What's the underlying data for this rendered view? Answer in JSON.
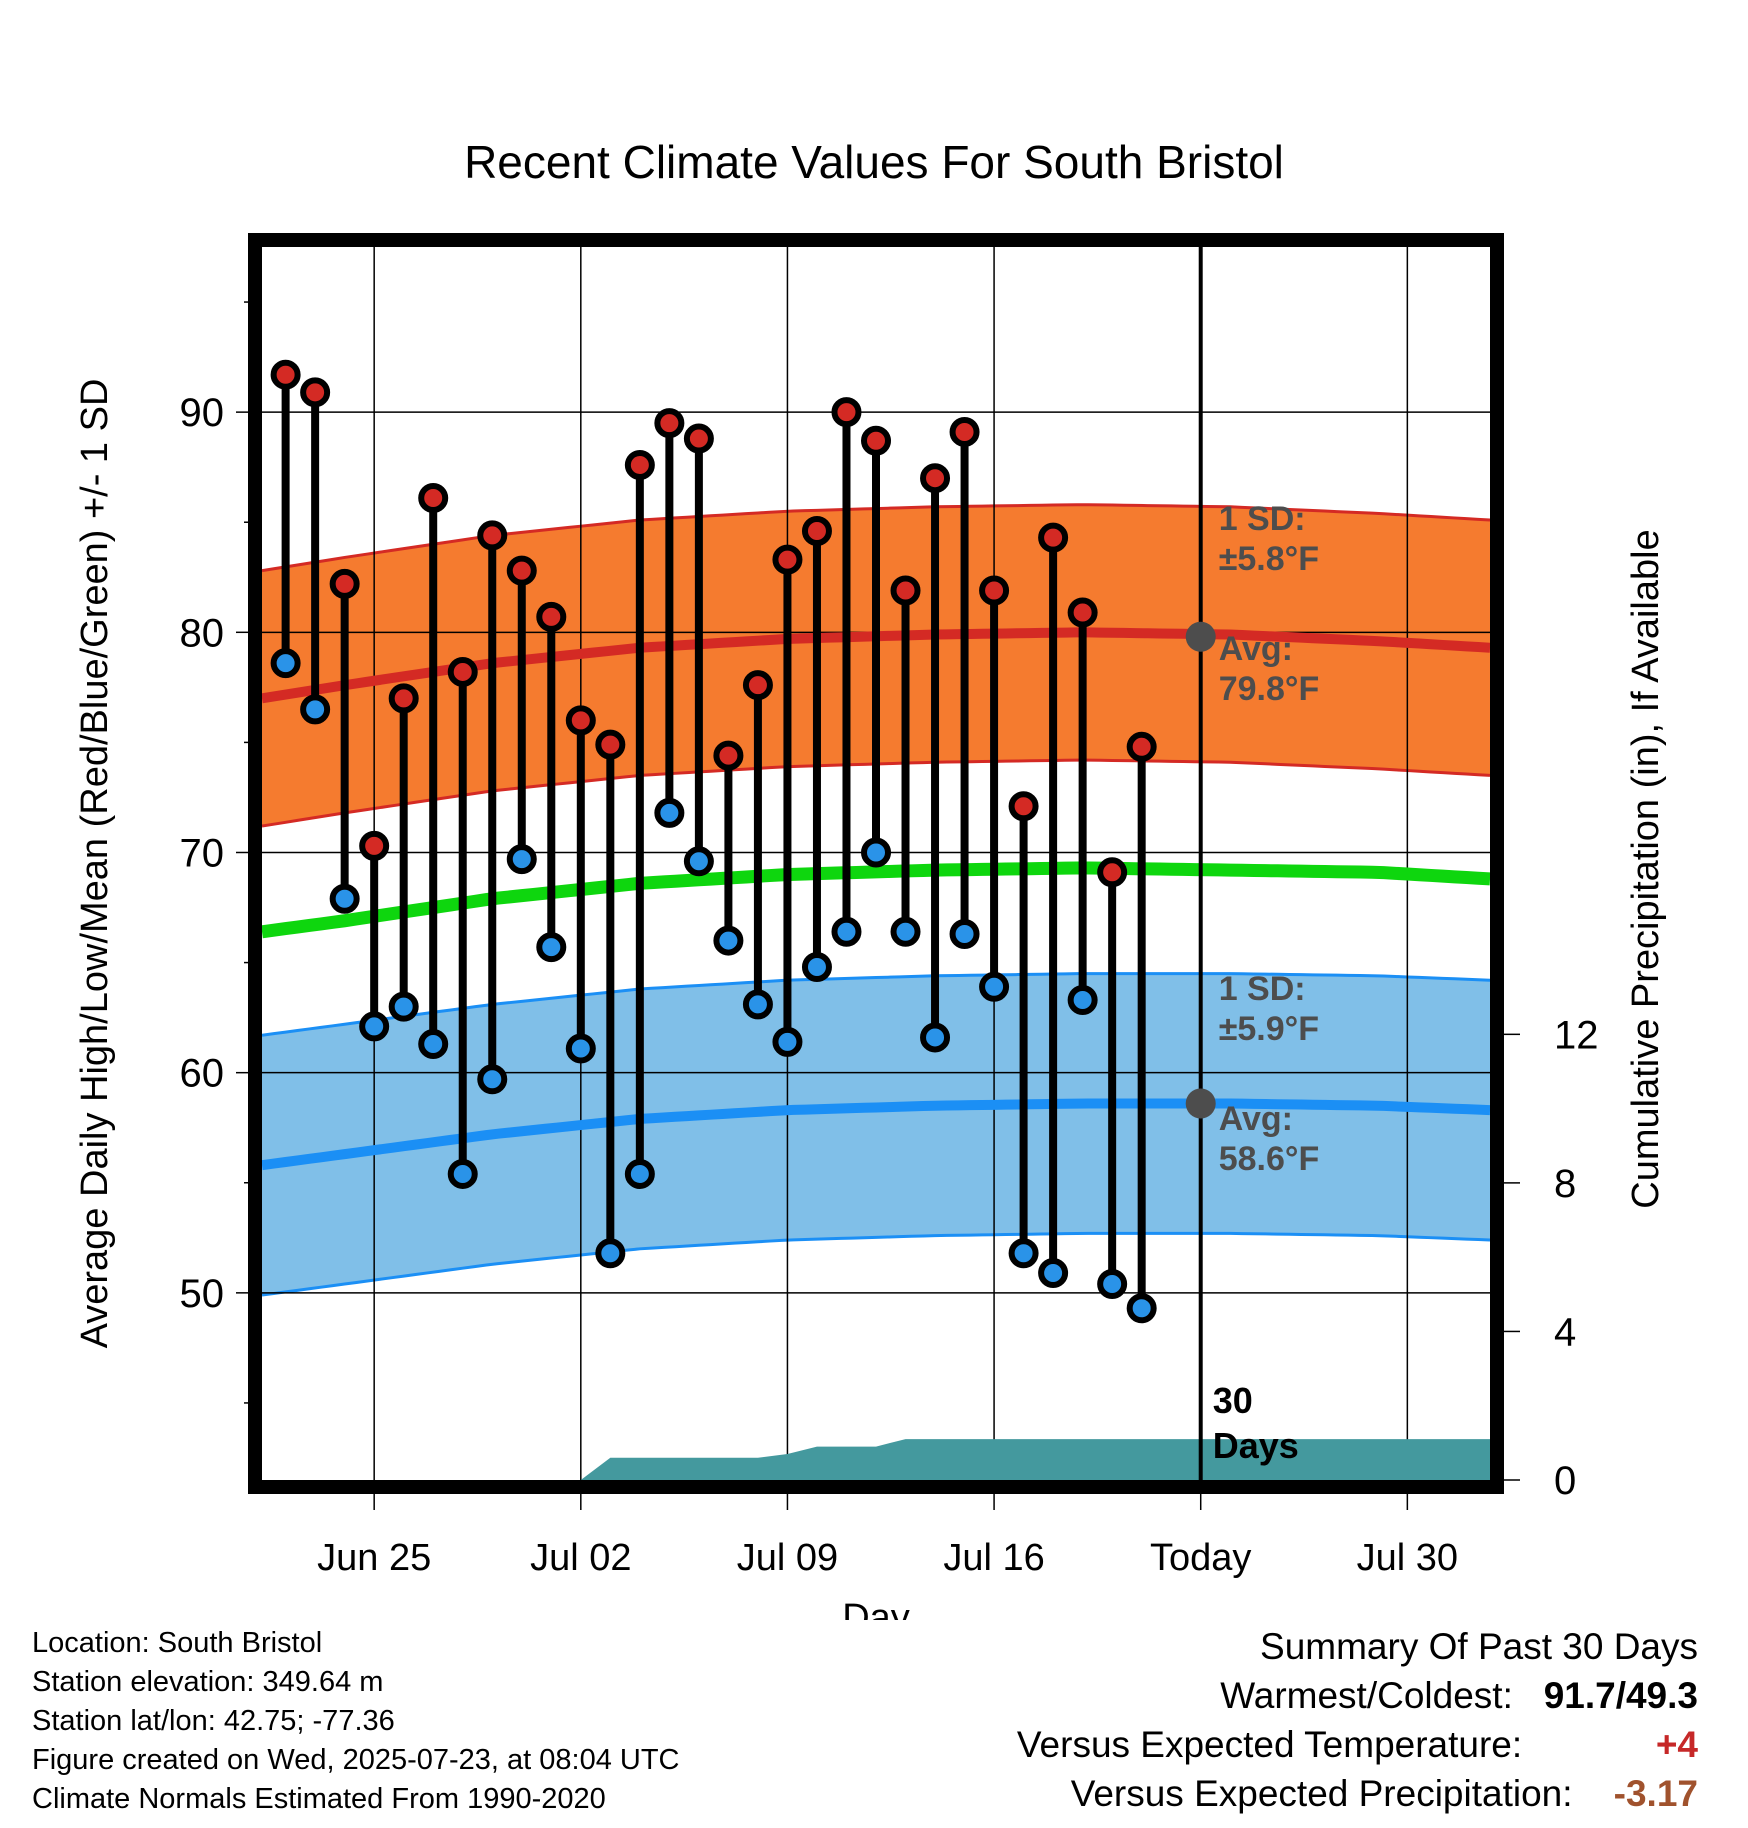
{
  "chart_data": {
    "type": "line",
    "title": "Recent Climate Values For South Bristol",
    "xlabel": "Day",
    "ylabel": "Average Daily High/Low/Mean (Red/Blue/Green) +/- 1 SD",
    "y2label": "Cumulative Precipitation (in), If Available",
    "ylim": [
      41.5,
      97.5
    ],
    "y2lim": [
      0,
      33.2
    ],
    "xlim": [
      -2.8,
      38.8
    ],
    "yticks": [
      50,
      60,
      70,
      80,
      90
    ],
    "y2ticks": [
      0,
      4,
      8,
      12
    ],
    "xticks": [
      {
        "day": 1,
        "label": "Jun 25"
      },
      {
        "day": 8,
        "label": "Jul 02"
      },
      {
        "day": 15,
        "label": "Jul 09"
      },
      {
        "day": 22,
        "label": "Jul 16"
      },
      {
        "day": 29,
        "label": "Today"
      },
      {
        "day": 36,
        "label": "Jul 30"
      }
    ],
    "today_day": 29,
    "today_label": "30\nDays",
    "observed": {
      "high": [
        91.7,
        90.9,
        82.2,
        70.3,
        77.0,
        86.1,
        78.2,
        84.4,
        82.8,
        80.7,
        76.0,
        74.9,
        87.6,
        89.5,
        88.8,
        74.4,
        77.6,
        83.3,
        84.6,
        90.0,
        88.7,
        81.9,
        87.0,
        89.1,
        81.9,
        72.1,
        84.3,
        80.9,
        69.1,
        74.8
      ],
      "low": [
        78.6,
        76.5,
        67.9,
        62.1,
        63.0,
        61.3,
        55.4,
        59.7,
        69.7,
        65.7,
        61.1,
        51.8,
        55.4,
        71.8,
        69.6,
        66.0,
        63.1,
        61.4,
        64.8,
        66.4,
        70.0,
        66.4,
        61.6,
        66.3,
        63.9,
        51.8,
        50.9,
        63.3,
        50.4,
        49.3
      ]
    },
    "normals": {
      "days": [
        -2.8,
        0,
        5,
        10,
        15,
        20,
        25,
        30,
        35,
        38.8
      ],
      "high_mean": [
        77.0,
        77.6,
        78.6,
        79.3,
        79.7,
        79.9,
        80.0,
        79.9,
        79.6,
        79.3
      ],
      "high_sd": 5.8,
      "low_mean": [
        55.8,
        56.3,
        57.2,
        57.9,
        58.3,
        58.5,
        58.6,
        58.6,
        58.5,
        58.3
      ],
      "low_sd": 5.9,
      "mean": [
        66.4,
        66.9,
        67.9,
        68.6,
        69.0,
        69.2,
        69.3,
        69.2,
        69.1,
        68.8
      ]
    },
    "precip": {
      "days": [
        -2.8,
        8,
        9,
        14,
        15,
        16,
        18,
        19,
        20,
        21,
        38.8
      ],
      "values": [
        0,
        0,
        0.6,
        0.6,
        0.7,
        0.9,
        0.9,
        1.1,
        1.1,
        1.1,
        1.1
      ]
    },
    "annotations": {
      "high_sd": {
        "line1": "1 SD:",
        "line2": "±5.8°F"
      },
      "high_avg": {
        "line1": "Avg:",
        "line2": "79.8°F",
        "value": 79.8
      },
      "low_sd": {
        "line1": "1 SD:",
        "line2": "±5.9°F"
      },
      "low_avg": {
        "line1": "Avg:",
        "line2": "58.6°F",
        "value": 58.6
      }
    },
    "colors": {
      "high_band": "#f57b2f",
      "high_mean": "#d42a24",
      "low_band": "#80bfe8",
      "low_mean": "#1b8ff5",
      "mean": "#0ed60e",
      "precip": "#44999e",
      "high_marker": "#d42a24",
      "low_marker": "#2a93e8",
      "annotation": "#4d4d4d"
    },
    "grid": true
  },
  "footer": {
    "location": "Location: South Bristol",
    "elevation": "Station elevation: 349.64 m",
    "latlon": "Station lat/lon: 42.75; -77.36",
    "created": "Figure created on Wed, 2025-07-23, at 08:04 UTC",
    "normals": "Climate Normals Estimated From 1990-2020"
  },
  "summary": {
    "title": "Summary Of Past 30 Days",
    "warmest_coldest_label": "Warmest/Coldest:",
    "warmest_coldest_value": "91.7/49.3",
    "temp_label": "Versus Expected Temperature:",
    "temp_value": "+4",
    "precip_label": "Versus Expected Precipitation:",
    "precip_value": "-3.17"
  }
}
